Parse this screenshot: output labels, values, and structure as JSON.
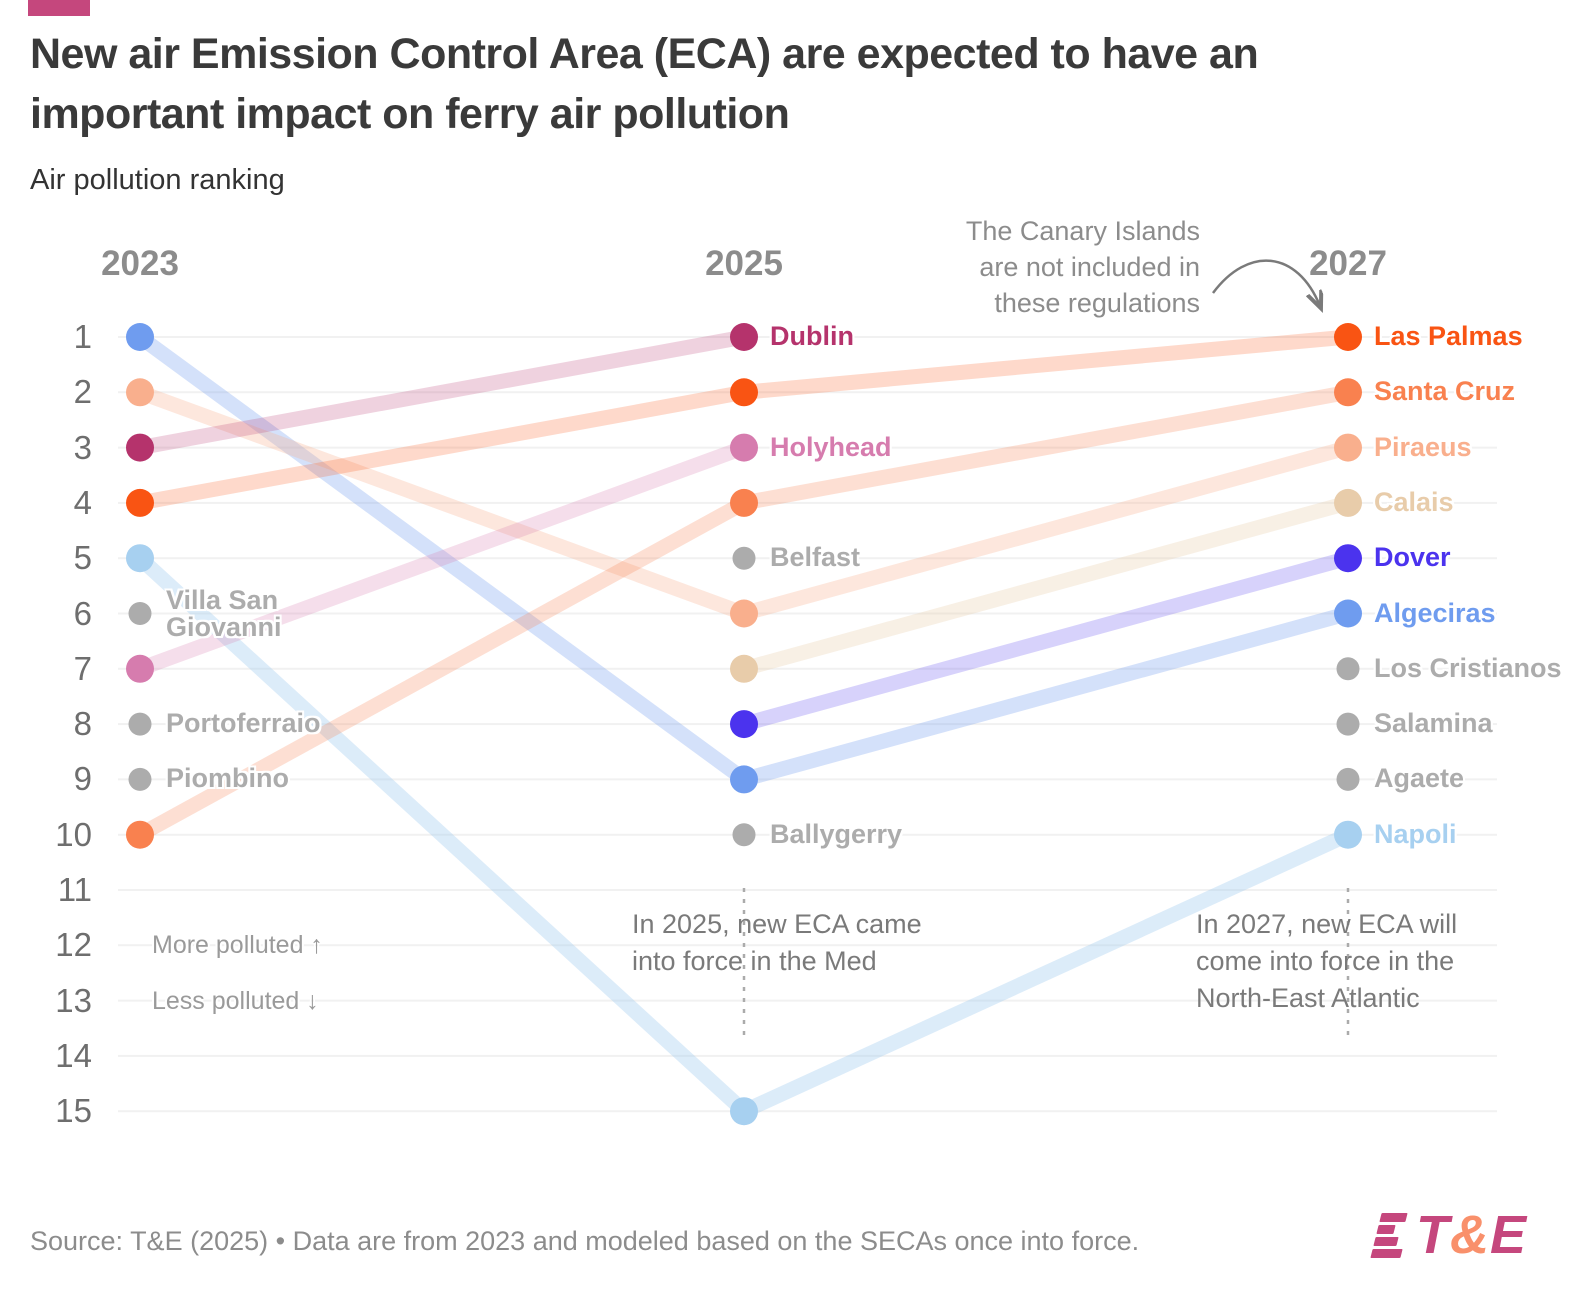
{
  "accent_color": "#C5477D",
  "header": {
    "title": "New air Emission Control Area (ECA) are expected to have an important impact on ferry air pollution",
    "subtitle": "Air pollution ranking"
  },
  "chart_data": {
    "type": "bump",
    "title": "Air pollution ranking",
    "years": [
      "2023",
      "2025",
      "2027"
    ],
    "ranks_shown": 15,
    "rank_direction": "1 = most polluted",
    "grid": true,
    "gray_color": "#ACACAC",
    "series": [
      {
        "name": "Algeciras",
        "color": "#6F9CEF",
        "line_alpha": 0.3,
        "ranks": [
          1,
          9,
          6
        ],
        "label_year": "2027"
      },
      {
        "name": "Piraeus",
        "color": "#F9AF8D",
        "line_alpha": 0.3,
        "ranks": [
          2,
          6,
          3
        ],
        "label_year": "2027"
      },
      {
        "name": "Dublin",
        "color": "#B5336C",
        "line_alpha": 0.22,
        "ranks": [
          3,
          1,
          null
        ],
        "label_year": "2025"
      },
      {
        "name": "Las Palmas",
        "color": "#F95413",
        "line_alpha": 0.22,
        "ranks": [
          4,
          2,
          1
        ],
        "label_year": "2027"
      },
      {
        "name": "Napoli",
        "color": "#A7D0F0",
        "line_alpha": 0.4,
        "ranks": [
          5,
          15,
          10
        ],
        "label_year": "2027"
      },
      {
        "name": "Villa San Giovanni",
        "color": "#ACACAC",
        "gray": true,
        "ranks": [
          6,
          null,
          null
        ],
        "label_year": "2023",
        "label_lines": [
          "Villa San",
          "Giovanni"
        ]
      },
      {
        "name": "Holyhead",
        "color": "#D67CAE",
        "line_alpha": 0.25,
        "ranks": [
          7,
          3,
          null
        ],
        "label_year": "2025"
      },
      {
        "name": "Portoferraio",
        "color": "#ACACAC",
        "gray": true,
        "ranks": [
          8,
          null,
          null
        ],
        "label_year": "2023"
      },
      {
        "name": "Piombino",
        "color": "#ACACAC",
        "gray": true,
        "ranks": [
          9,
          null,
          null
        ],
        "label_year": "2023"
      },
      {
        "name": "Santa Cruz",
        "color": "#F9814F",
        "line_alpha": 0.25,
        "ranks": [
          10,
          4,
          2
        ],
        "label_year": "2027"
      },
      {
        "name": "Belfast",
        "color": "#ACACAC",
        "gray": true,
        "ranks": [
          null,
          5,
          null
        ],
        "label_year": "2025"
      },
      {
        "name": "Calais",
        "color": "#E8CCAA",
        "line_alpha": 0.3,
        "ranks": [
          null,
          7,
          4
        ],
        "label_year": "2027"
      },
      {
        "name": "Dover",
        "color": "#4B33EE",
        "line_alpha": 0.22,
        "ranks": [
          null,
          8,
          5
        ],
        "label_year": "2027"
      },
      {
        "name": "Ballygerry",
        "color": "#ACACAC",
        "gray": true,
        "ranks": [
          null,
          10,
          null
        ],
        "label_year": "2025"
      },
      {
        "name": "Los Cristianos",
        "color": "#ACACAC",
        "gray": true,
        "ranks": [
          null,
          null,
          7
        ],
        "label_year": "2027"
      },
      {
        "name": "Salamina",
        "color": "#ACACAC",
        "gray": true,
        "ranks": [
          null,
          null,
          8
        ],
        "label_year": "2027"
      },
      {
        "name": "Agaete",
        "color": "#ACACAC",
        "gray": true,
        "ranks": [
          null,
          null,
          9
        ],
        "label_year": "2027"
      }
    ]
  },
  "annotation": {
    "line1": "The Canary Islands",
    "line2": "are not included in",
    "line3": "these regulations"
  },
  "direction": {
    "more": "More polluted ↑",
    "less": "Less polluted ↓"
  },
  "notes": {
    "y2025": {
      "line1": "In 2025, new ECA came",
      "line2": "into force in the Med"
    },
    "y2027": {
      "line1": "In 2027, new ECA will",
      "line2": "come into force in the",
      "line3": "North-East Atlantic"
    }
  },
  "footer": {
    "source": "Source: T&E (2025) • Data are from 2023 and modeled based on the SECAs once into force.",
    "logo": {
      "part1": "T",
      "amp": "&",
      "part2": "E",
      "amp_color": "#F9906B"
    }
  }
}
